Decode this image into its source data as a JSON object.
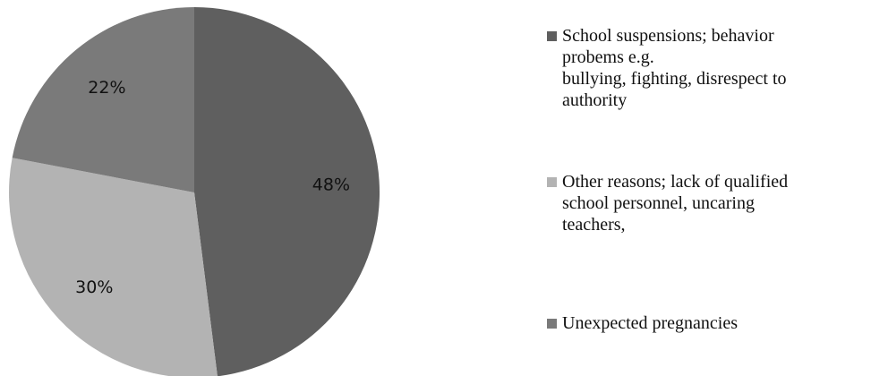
{
  "chart_data": {
    "type": "pie",
    "slices": [
      {
        "label": "School suspensions; behavior probems e.g. bullying, fighting, disrespect to authority",
        "value": 48,
        "display": "48%",
        "color": "#5f5f5f"
      },
      {
        "label": "Other reasons; lack of qualified school personnel, uncaring teachers,",
        "value": 30,
        "display": "30%",
        "color": "#b3b3b3"
      },
      {
        "label": "Unexpected pregnancies",
        "value": 22,
        "display": "22%",
        "color": "#7a7a7a"
      }
    ],
    "legend": {
      "position": "right",
      "items": [
        {
          "lines": [
            "School suspensions; behavior",
            "probems e.g.",
            "bullying, fighting, disrespect to",
            "authority"
          ],
          "color": "#5f5f5f"
        },
        {
          "lines": [
            "Other reasons; lack of qualified",
            "school personnel, uncaring",
            "teachers,"
          ],
          "color": "#b3b3b3"
        },
        {
          "lines": [
            "Unexpected pregnancies"
          ],
          "color": "#7a7a7a"
        }
      ]
    }
  }
}
